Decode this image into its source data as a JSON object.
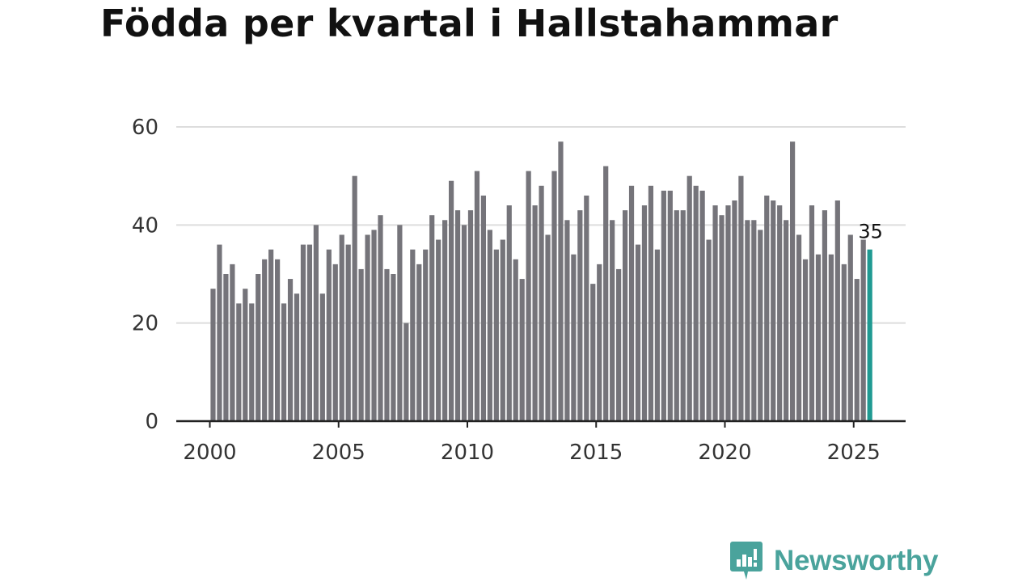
{
  "chart_data": {
    "type": "bar",
    "title": "Födda per kvartal i Hallstahammar",
    "xlabel": "",
    "ylabel": "",
    "ylim": [
      0,
      60
    ],
    "yticks": [
      0,
      20,
      40,
      60
    ],
    "xticks": [
      2000,
      2005,
      2010,
      2015,
      2020,
      2025
    ],
    "start": "2000 Q1",
    "end": "2025 Q3",
    "highlight_label": "35",
    "colors": {
      "bar": "#75747a",
      "highlight": "#1f9a92",
      "grid": "#dddddd",
      "axis": "#222222"
    },
    "values": [
      27,
      36,
      30,
      32,
      24,
      27,
      24,
      30,
      33,
      35,
      33,
      24,
      29,
      26,
      36,
      36,
      40,
      26,
      35,
      32,
      38,
      36,
      50,
      31,
      38,
      39,
      42,
      31,
      30,
      40,
      20,
      35,
      32,
      35,
      42,
      37,
      41,
      49,
      43,
      40,
      43,
      51,
      46,
      39,
      35,
      37,
      44,
      33,
      29,
      51,
      44,
      48,
      38,
      51,
      57,
      41,
      34,
      43,
      46,
      28,
      32,
      52,
      41,
      31,
      43,
      48,
      36,
      44,
      48,
      35,
      47,
      47,
      43,
      43,
      50,
      48,
      47,
      37,
      44,
      42,
      44,
      45,
      50,
      41,
      41,
      39,
      46,
      45,
      44,
      41,
      57,
      38,
      33,
      44,
      34,
      43,
      34,
      45,
      32,
      38,
      29,
      37,
      35
    ]
  },
  "brand": {
    "name": "Newsworthy",
    "icon": "newsworthy-logo-icon"
  }
}
